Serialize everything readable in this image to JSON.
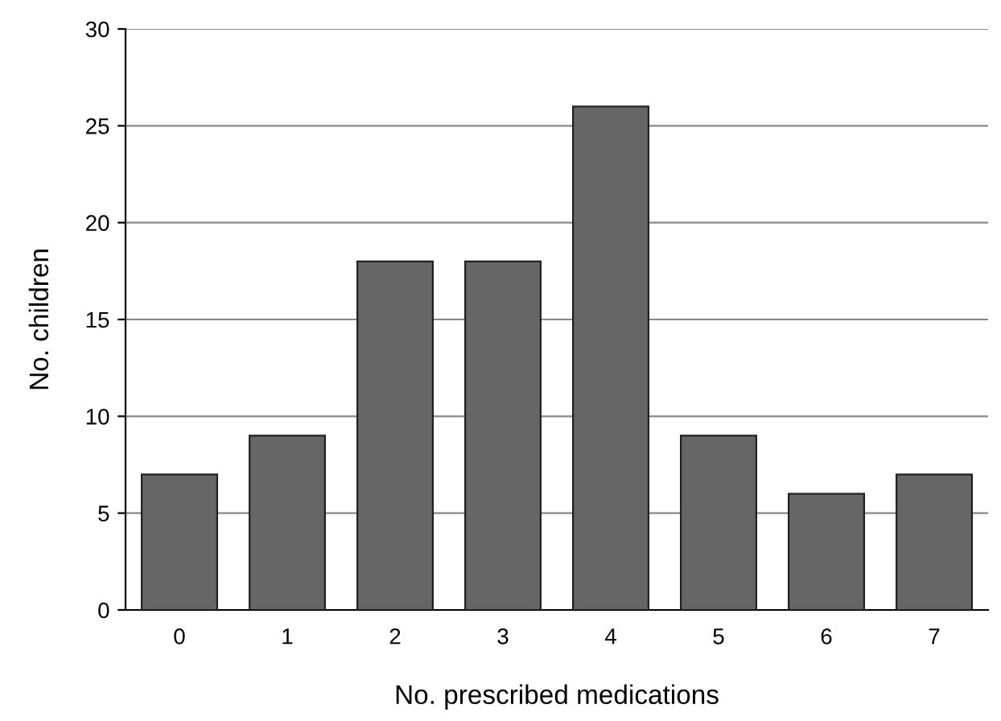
{
  "chart_data": {
    "type": "bar",
    "xlabel": "No. prescribed medications",
    "ylabel": "No. children",
    "categories": [
      "0",
      "1",
      "2",
      "3",
      "4",
      "5",
      "6",
      "7"
    ],
    "values": [
      7,
      9,
      18,
      18,
      26,
      9,
      6,
      7
    ],
    "color": "#666666",
    "ylim": [
      0,
      30
    ],
    "yticks": [
      0,
      5,
      10,
      15,
      20,
      25,
      30
    ],
    "grid": "y"
  }
}
